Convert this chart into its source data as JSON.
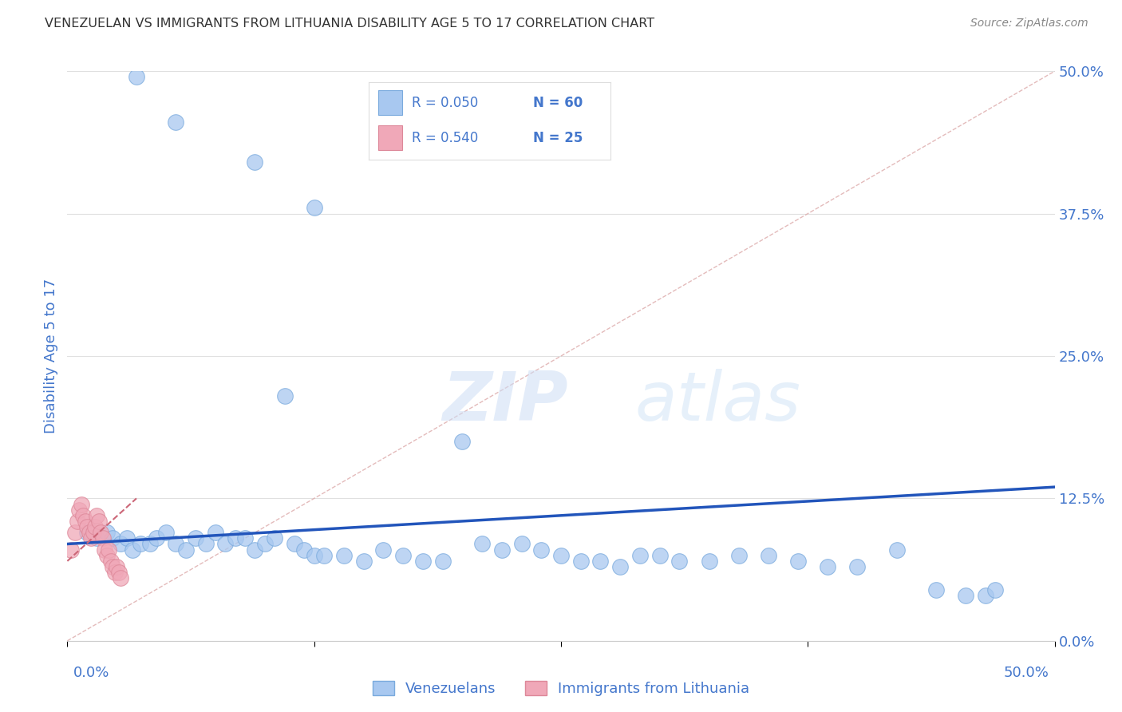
{
  "title": "VENEZUELAN VS IMMIGRANTS FROM LITHUANIA DISABILITY AGE 5 TO 17 CORRELATION CHART",
  "source": "Source: ZipAtlas.com",
  "ylabel": "Disability Age 5 to 17",
  "ytick_values": [
    0.0,
    12.5,
    25.0,
    37.5,
    50.0
  ],
  "xlim": [
    0.0,
    50.0
  ],
  "ylim": [
    0.0,
    50.0
  ],
  "legend_blue_r": "R = 0.050",
  "legend_blue_n": "N = 60",
  "legend_pink_r": "R = 0.540",
  "legend_pink_n": "N = 25",
  "legend_blue_label": "Venezuelans",
  "legend_pink_label": "Immigrants from Lithuania",
  "blue_color": "#a8c8f0",
  "pink_color": "#f0a8b8",
  "blue_edge_color": "#7aaadd",
  "pink_edge_color": "#dd8899",
  "blue_line_color": "#2255bb",
  "pink_line_color": "#cc6677",
  "diagonal_color": "#ddaaaa",
  "watermark_zip": "ZIP",
  "watermark_atlas": "atlas",
  "blue_points_x": [
    3.5,
    5.5,
    9.5,
    12.5,
    1.0,
    1.5,
    2.0,
    2.3,
    2.7,
    3.0,
    3.3,
    3.7,
    4.2,
    4.5,
    5.0,
    5.5,
    6.0,
    6.5,
    7.0,
    7.5,
    8.0,
    8.5,
    9.0,
    9.5,
    10.0,
    10.5,
    11.0,
    11.5,
    12.0,
    12.5,
    13.0,
    14.0,
    15.0,
    16.0,
    17.0,
    18.0,
    19.0,
    20.0,
    21.0,
    22.0,
    23.0,
    24.0,
    25.0,
    26.0,
    27.0,
    28.0,
    29.0,
    30.0,
    31.0,
    32.5,
    34.0,
    35.5,
    37.0,
    38.5,
    40.0,
    42.0,
    44.0,
    45.5,
    46.5,
    47.0
  ],
  "blue_points_y": [
    49.5,
    45.5,
    42.0,
    38.0,
    9.5,
    9.0,
    9.5,
    9.0,
    8.5,
    9.0,
    8.0,
    8.5,
    8.5,
    9.0,
    9.5,
    8.5,
    8.0,
    9.0,
    8.5,
    9.5,
    8.5,
    9.0,
    9.0,
    8.0,
    8.5,
    9.0,
    21.5,
    8.5,
    8.0,
    7.5,
    7.5,
    7.5,
    7.0,
    8.0,
    7.5,
    7.0,
    7.0,
    17.5,
    8.5,
    8.0,
    8.5,
    8.0,
    7.5,
    7.0,
    7.0,
    6.5,
    7.5,
    7.5,
    7.0,
    7.0,
    7.5,
    7.5,
    7.0,
    6.5,
    6.5,
    8.0,
    4.5,
    4.0,
    4.0,
    4.5
  ],
  "pink_points_x": [
    0.2,
    0.4,
    0.5,
    0.6,
    0.7,
    0.8,
    0.9,
    1.0,
    1.1,
    1.2,
    1.3,
    1.4,
    1.5,
    1.6,
    1.7,
    1.8,
    1.9,
    2.0,
    2.1,
    2.2,
    2.3,
    2.4,
    2.5,
    2.6,
    2.7
  ],
  "pink_points_y": [
    8.0,
    9.5,
    10.5,
    11.5,
    12.0,
    11.0,
    10.5,
    10.0,
    9.5,
    9.0,
    9.5,
    10.0,
    11.0,
    10.5,
    9.5,
    9.0,
    8.0,
    7.5,
    8.0,
    7.0,
    6.5,
    6.0,
    6.5,
    6.0,
    5.5
  ],
  "blue_trend_x": [
    0.0,
    50.0
  ],
  "blue_trend_y": [
    8.5,
    13.5
  ],
  "pink_trend_x": [
    0.0,
    3.5
  ],
  "pink_trend_y": [
    7.0,
    12.5
  ],
  "bg_color": "#ffffff",
  "grid_color": "#e0e0e0",
  "title_color": "#333333",
  "axis_label_color": "#4477cc",
  "tick_label_color": "#4477cc"
}
